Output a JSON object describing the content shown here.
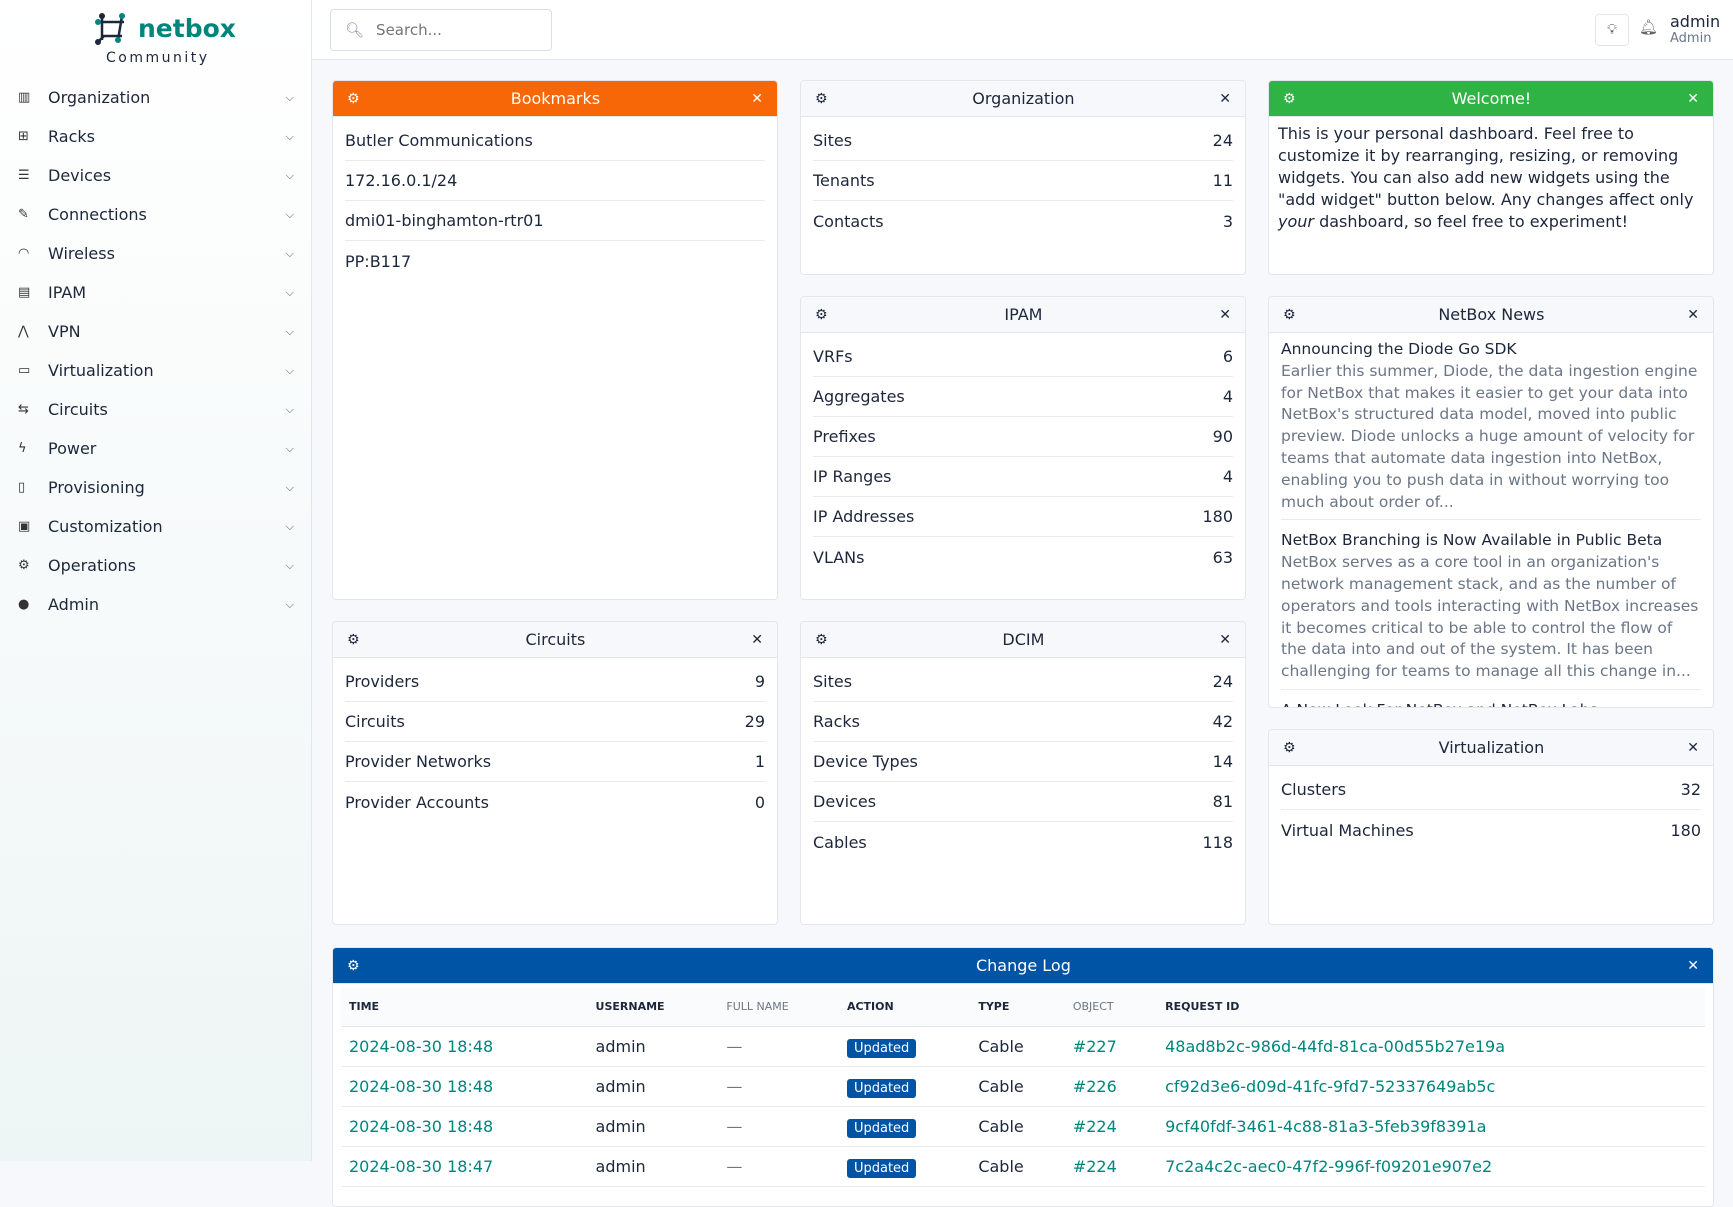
{
  "brand": {
    "name": "netbox",
    "edition": "Community"
  },
  "sidebar": {
    "items": [
      {
        "label": "Organization",
        "icon": "building-icon"
      },
      {
        "label": "Racks",
        "icon": "rack-icon"
      },
      {
        "label": "Devices",
        "icon": "server-icon"
      },
      {
        "label": "Connections",
        "icon": "plug-icon"
      },
      {
        "label": "Wireless",
        "icon": "wifi-icon"
      },
      {
        "label": "IPAM",
        "icon": "ip-icon"
      },
      {
        "label": "VPN",
        "icon": "network-icon"
      },
      {
        "label": "Virtualization",
        "icon": "monitor-icon"
      },
      {
        "label": "Circuits",
        "icon": "circuit-icon"
      },
      {
        "label": "Power",
        "icon": "bolt-icon"
      },
      {
        "label": "Provisioning",
        "icon": "file-icon"
      },
      {
        "label": "Customization",
        "icon": "toolbox-icon"
      },
      {
        "label": "Operations",
        "icon": "cogs-icon"
      },
      {
        "label": "Admin",
        "icon": "users-icon"
      }
    ]
  },
  "header": {
    "search_placeholder": "Search...",
    "user": "admin",
    "role": "Admin"
  },
  "colors": {
    "bookmarks": "#f76707",
    "welcome": "#2fb344",
    "changelog": "#0054a6",
    "link": "#00857d"
  },
  "widgets": {
    "bookmarks": {
      "title": "Bookmarks",
      "items": [
        "Butler Communications",
        "172.16.0.1/24",
        "dmi01-binghamton-rtr01",
        "PP:B117"
      ]
    },
    "organization": {
      "title": "Organization",
      "rows": [
        {
          "label": "Sites",
          "value": "24"
        },
        {
          "label": "Tenants",
          "value": "11"
        },
        {
          "label": "Contacts",
          "value": "3"
        }
      ]
    },
    "welcome": {
      "title": "Welcome!",
      "text1": "This is your personal dashboard. Feel free to customize it by rearranging, resizing, or removing widgets. You can also add new widgets using the \"add widget\" button below. Any changes affect only ",
      "em": "your",
      "text2": " dashboard, so feel free to experiment!"
    },
    "ipam": {
      "title": "IPAM",
      "rows": [
        {
          "label": "VRFs",
          "value": "6"
        },
        {
          "label": "Aggregates",
          "value": "4"
        },
        {
          "label": "Prefixes",
          "value": "90"
        },
        {
          "label": "IP Ranges",
          "value": "4"
        },
        {
          "label": "IP Addresses",
          "value": "180"
        },
        {
          "label": "VLANs",
          "value": "63"
        }
      ]
    },
    "news": {
      "title": "NetBox News",
      "items": [
        {
          "title": "Announcing the Diode Go SDK",
          "body": "Earlier this summer, Diode, the data ingestion engine for NetBox that makes it easier to get your data into NetBox's structured data model, moved into public preview. Diode unlocks a huge amount of velocity for teams that automate data ingestion into NetBox, enabling you to push data in without worrying too much about order of..."
        },
        {
          "title": "NetBox Branching is Now Available in Public Beta",
          "body": "NetBox serves as a core tool in an organization's network management stack, and as the number of operators and tools interacting with NetBox increases it becomes critical to be able to control the flow of the data into and out of the system. It has been challenging for teams to manage all this change in..."
        },
        {
          "title": "A New Look For NetBox and NetBox Labs",
          "body": ""
        }
      ]
    },
    "circuits": {
      "title": "Circuits",
      "rows": [
        {
          "label": "Providers",
          "value": "9"
        },
        {
          "label": "Circuits",
          "value": "29"
        },
        {
          "label": "Provider Networks",
          "value": "1"
        },
        {
          "label": "Provider Accounts",
          "value": "0"
        }
      ]
    },
    "dcim": {
      "title": "DCIM",
      "rows": [
        {
          "label": "Sites",
          "value": "24"
        },
        {
          "label": "Racks",
          "value": "42"
        },
        {
          "label": "Device Types",
          "value": "14"
        },
        {
          "label": "Devices",
          "value": "81"
        },
        {
          "label": "Cables",
          "value": "118"
        }
      ]
    },
    "virtualization": {
      "title": "Virtualization",
      "rows": [
        {
          "label": "Clusters",
          "value": "32"
        },
        {
          "label": "Virtual Machines",
          "value": "180"
        }
      ]
    },
    "changelog": {
      "title": "Change Log",
      "columns": [
        "TIME",
        "USERNAME",
        "FULL NAME",
        "ACTION",
        "TYPE",
        "OBJECT",
        "REQUEST ID"
      ],
      "rows": [
        {
          "time": "2024-08-30 18:48",
          "username": "admin",
          "full_name": "—",
          "action": "Updated",
          "type": "Cable",
          "object": "#227",
          "request_id": "48ad8b2c-986d-44fd-81ca-00d55b27e19a"
        },
        {
          "time": "2024-08-30 18:48",
          "username": "admin",
          "full_name": "—",
          "action": "Updated",
          "type": "Cable",
          "object": "#226",
          "request_id": "cf92d3e6-d09d-41fc-9fd7-52337649ab5c"
        },
        {
          "time": "2024-08-30 18:48",
          "username": "admin",
          "full_name": "—",
          "action": "Updated",
          "type": "Cable",
          "object": "#224",
          "request_id": "9cf40fdf-3461-4c88-81a3-5feb39f8391a"
        },
        {
          "time": "2024-08-30 18:47",
          "username": "admin",
          "full_name": "—",
          "action": "Updated",
          "type": "Cable",
          "object": "#224",
          "request_id": "7c2a4c2c-aec0-47f2-996f-f09201e907e2"
        }
      ]
    }
  }
}
